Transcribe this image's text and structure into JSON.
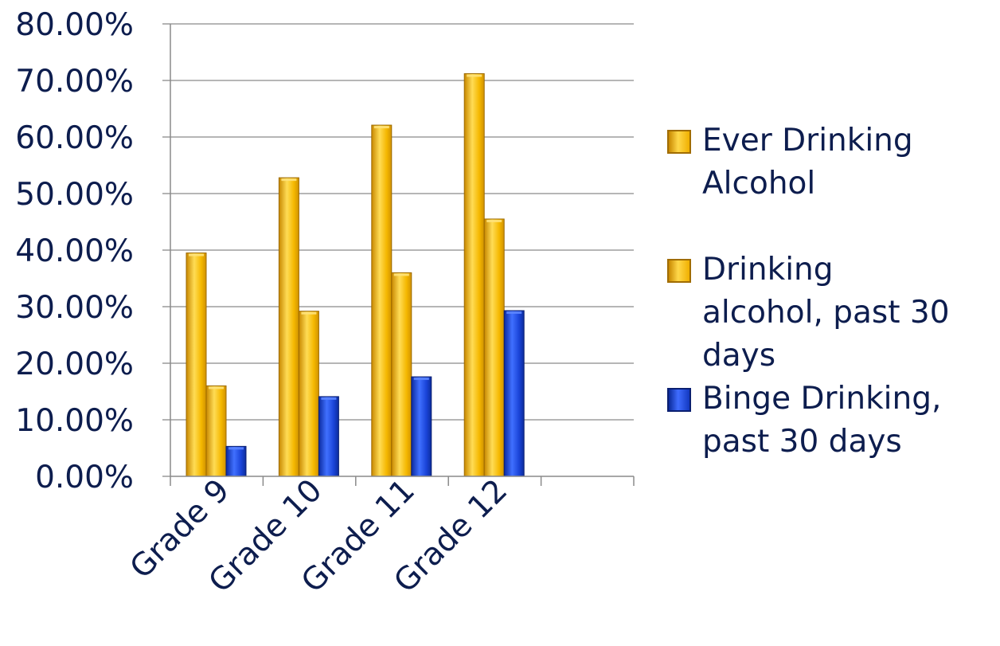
{
  "chart_data": {
    "type": "bar",
    "title": "",
    "xlabel": "",
    "ylabel": "",
    "categories": [
      "Grade 9",
      "Grade 10",
      "Grade 11",
      "Grade 12"
    ],
    "series": [
      {
        "name": "Ever Drinking Alcohol",
        "values": [
          39.5,
          52.8,
          62.1,
          71.2
        ],
        "color": "#f4b400"
      },
      {
        "name": "Drinking alcohol, past 30 days",
        "values": [
          16.0,
          29.2,
          36.0,
          45.5
        ],
        "color": "#f4b400"
      },
      {
        "name": "Binge Drinking, past 30 days",
        "values": [
          5.3,
          14.1,
          17.6,
          29.3
        ],
        "color": "#1f49e0"
      }
    ],
    "yticks": [
      "0.00%",
      "10.00%",
      "20.00%",
      "30.00%",
      "40.00%",
      "50.00%",
      "60.00%",
      "70.00%",
      "80.00%"
    ],
    "ylim": [
      0,
      80
    ],
    "grid": true,
    "legend_position": "right"
  },
  "legend": {
    "items": [
      {
        "lines": [
          "Ever Drinking",
          "Alcohol"
        ]
      },
      {
        "lines": [
          "Drinking",
          "alcohol, past 30",
          "days"
        ]
      },
      {
        "lines": [
          "Binge Drinking,",
          "past 30 days"
        ]
      }
    ]
  }
}
